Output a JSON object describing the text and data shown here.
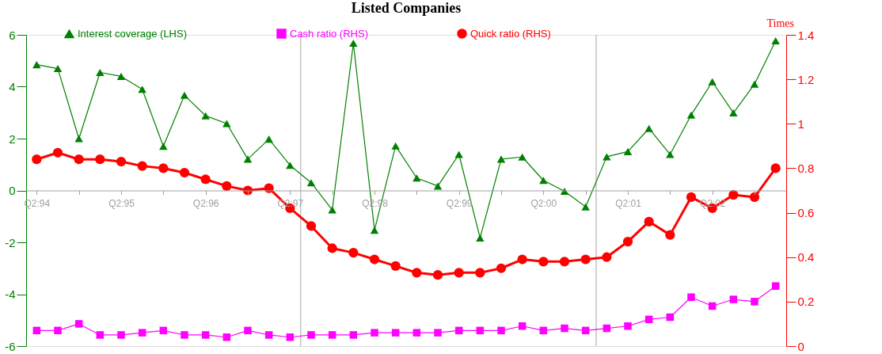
{
  "chart_data": {
    "type": "line",
    "title": "Listed Companies",
    "y2label": "Times",
    "categories": [
      "Q2:94",
      null,
      null,
      null,
      "Q2:95",
      null,
      null,
      null,
      "Q2:96",
      null,
      null,
      null,
      "Q2:97",
      null,
      null,
      null,
      "Q2:98",
      null,
      null,
      null,
      "Q2:99",
      null,
      null,
      null,
      "Q2:00",
      null,
      null,
      null,
      "Q2:01",
      null,
      null,
      null,
      "Q2:02",
      null,
      null,
      null
    ],
    "ylim": [
      -6,
      6
    ],
    "yticks": [
      -6,
      -4,
      -2,
      0,
      2,
      4,
      6
    ],
    "y2lim": [
      0,
      1.4
    ],
    "y2ticks": [
      0,
      0.2,
      0.4,
      0.6,
      0.8,
      1,
      1.2,
      1.4
    ],
    "series": [
      {
        "name": "Interest coverage (LHS)",
        "color": "#008000",
        "marker": "triangle",
        "values": [
          4.85,
          4.7,
          2.0,
          4.55,
          4.4,
          3.9,
          1.7,
          3.67,
          2.88,
          2.58,
          1.21,
          1.98,
          0.97,
          0.3,
          -0.75,
          5.68,
          -1.53,
          1.72,
          0.48,
          0.17,
          1.39,
          -1.83,
          1.21,
          1.29,
          0.39,
          -0.03,
          -0.63,
          1.3,
          1.5,
          2.39,
          1.39,
          2.91,
          4.19,
          2.99,
          4.1,
          5.77
        ]
      },
      {
        "name": "Cash ratio (RHS)",
        "color": "#ff00ff",
        "marker": "square",
        "axis": "y2",
        "values": [
          0.07,
          0.07,
          0.1,
          0.05,
          0.05,
          0.06,
          0.07,
          0.05,
          0.05,
          0.04,
          0.07,
          0.05,
          0.04,
          0.05,
          0.05,
          0.05,
          0.06,
          0.06,
          0.06,
          0.06,
          0.07,
          0.07,
          0.07,
          0.09,
          0.07,
          0.08,
          0.07,
          0.08,
          0.09,
          0.12,
          0.13,
          0.22,
          0.18,
          0.21,
          0.2,
          0.27
        ]
      },
      {
        "name": "Quick ratio (RHS)",
        "color": "#ff0000",
        "marker": "circle",
        "axis": "y2",
        "values": [
          0.84,
          0.87,
          0.84,
          0.84,
          0.83,
          0.81,
          0.8,
          0.78,
          0.75,
          0.72,
          0.7,
          0.71,
          0.62,
          0.54,
          0.44,
          0.42,
          0.39,
          0.36,
          0.33,
          0.32,
          0.33,
          0.33,
          0.35,
          0.39,
          0.38,
          0.38,
          0.39,
          0.4,
          0.47,
          0.56,
          0.5,
          0.67,
          0.62,
          0.68,
          0.67,
          0.8
        ]
      }
    ],
    "grid": false,
    "legend": "top"
  }
}
